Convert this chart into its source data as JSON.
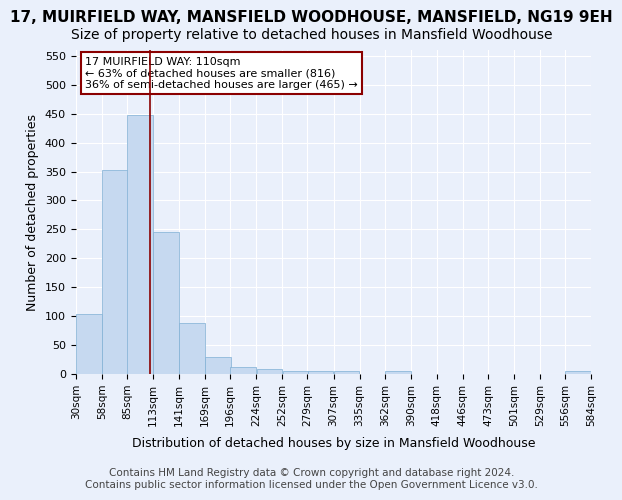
{
  "title": "17, MUIRFIELD WAY, MANSFIELD WOODHOUSE, MANSFIELD, NG19 9EH",
  "subtitle": "Size of property relative to detached houses in Mansfield Woodhouse",
  "xlabel": "Distribution of detached houses by size in Mansfield Woodhouse",
  "ylabel": "Number of detached properties",
  "footer_line1": "Contains HM Land Registry data © Crown copyright and database right 2024.",
  "footer_line2": "Contains public sector information licensed under the Open Government Licence v3.0.",
  "bin_edges": [
    30,
    58,
    85,
    113,
    141,
    169,
    196,
    224,
    252,
    279,
    307,
    335,
    362,
    390,
    418,
    446,
    473,
    501,
    529,
    556,
    584
  ],
  "bin_labels": [
    "30sqm",
    "58sqm",
    "85sqm",
    "113sqm",
    "141sqm",
    "169sqm",
    "196sqm",
    "224sqm",
    "252sqm",
    "279sqm",
    "307sqm",
    "335sqm",
    "362sqm",
    "390sqm",
    "418sqm",
    "446sqm",
    "473sqm",
    "501sqm",
    "529sqm",
    "556sqm",
    "584sqm"
  ],
  "bar_heights": [
    103,
    353,
    448,
    245,
    88,
    30,
    13,
    9,
    5,
    5,
    5,
    0,
    5,
    0,
    0,
    0,
    0,
    0,
    0,
    5
  ],
  "bar_color": "#c6d9f0",
  "bar_edge_color": "#7fafd4",
  "property_size": 110,
  "property_line_color": "#8b0000",
  "annotation_text": "17 MUIRFIELD WAY: 110sqm\n← 63% of detached houses are smaller (816)\n36% of semi-detached houses are larger (465) →",
  "annotation_box_color": "white",
  "annotation_box_edgecolor": "#8b0000",
  "ylim": [
    0,
    560
  ],
  "yticks": [
    0,
    50,
    100,
    150,
    200,
    250,
    300,
    350,
    400,
    450,
    500,
    550
  ],
  "background_color": "#eaf0fb",
  "grid_color": "white",
  "title_fontsize": 11,
  "subtitle_fontsize": 10,
  "footer_fontsize": 7.5
}
